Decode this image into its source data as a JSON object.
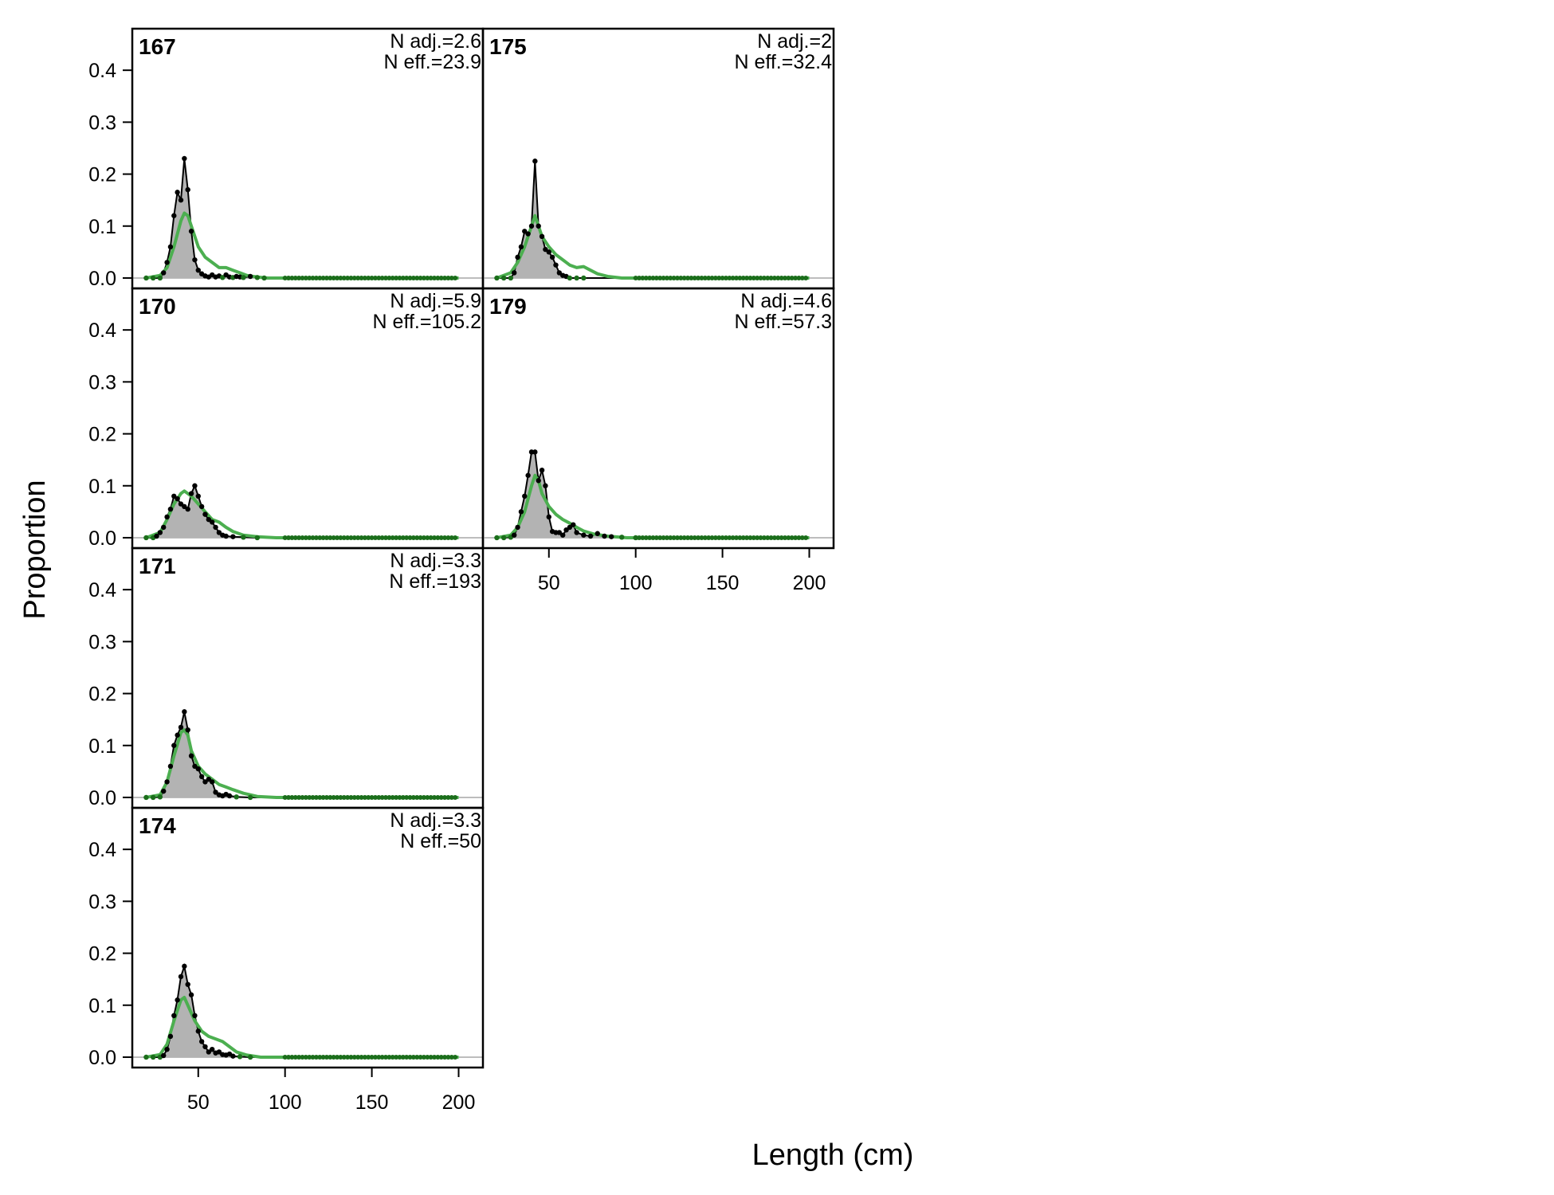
{
  "figure": {
    "xlabel": "Length (cm)",
    "ylabel": "Proportion"
  },
  "style": {
    "observed_fill": "#b3b3b3",
    "observed_line": "#000000",
    "expected_line": "#4caf50",
    "dot_green": "#1b6e1b",
    "zero_line": "#bdbdbd",
    "frame": "#000000"
  },
  "chart_data": [
    {
      "type": "area",
      "panel": "167",
      "n_adj_text": "N adj.=2.6",
      "n_eff_text": "N eff.=23.9",
      "xlim": [
        12,
        214
      ],
      "ylim": [
        -0.02,
        0.48
      ],
      "xticks": [
        "50",
        "100",
        "150",
        "200"
      ],
      "yticks": [
        "0.0",
        "0.1",
        "0.2",
        "0.3",
        "0.4"
      ],
      "observed": [
        [
          20,
          0
        ],
        [
          24,
          0
        ],
        [
          28,
          0
        ],
        [
          30,
          0.01
        ],
        [
          32,
          0.03
        ],
        [
          34,
          0.06
        ],
        [
          36,
          0.12
        ],
        [
          38,
          0.165
        ],
        [
          40,
          0.15
        ],
        [
          42,
          0.23
        ],
        [
          44,
          0.17
        ],
        [
          46,
          0.09
        ],
        [
          48,
          0.035
        ],
        [
          50,
          0.015
        ],
        [
          52,
          0.008
        ],
        [
          54,
          0.004
        ],
        [
          56,
          0.002
        ],
        [
          58,
          0.006
        ],
        [
          60,
          0.002
        ],
        [
          62,
          0.004
        ],
        [
          64,
          0.001
        ],
        [
          66,
          0.006
        ],
        [
          68,
          0.002
        ],
        [
          70,
          0.001
        ],
        [
          72,
          0.003
        ],
        [
          74,
          0.002
        ],
        [
          76,
          0.001
        ],
        [
          80,
          0.003
        ],
        [
          84,
          0.001
        ],
        [
          88,
          0
        ],
        [
          200,
          0
        ]
      ],
      "expected": [
        [
          20,
          0
        ],
        [
          28,
          0.005
        ],
        [
          32,
          0.02
        ],
        [
          36,
          0.06
        ],
        [
          40,
          0.11
        ],
        [
          42,
          0.125
        ],
        [
          44,
          0.12
        ],
        [
          46,
          0.1
        ],
        [
          50,
          0.06
        ],
        [
          54,
          0.04
        ],
        [
          58,
          0.03
        ],
        [
          62,
          0.02
        ],
        [
          66,
          0.02
        ],
        [
          70,
          0.015
        ],
        [
          74,
          0.01
        ],
        [
          78,
          0.005
        ],
        [
          84,
          0.002
        ],
        [
          90,
          0
        ],
        [
          200,
          0
        ]
      ]
    },
    {
      "type": "area",
      "panel": "170",
      "n_adj_text": "N adj.=5.9",
      "n_eff_text": "N eff.=105.2",
      "xlim": [
        12,
        214
      ],
      "ylim": [
        -0.02,
        0.48
      ],
      "xticks": [
        "50",
        "100",
        "150",
        "200"
      ],
      "yticks": [
        "0.0",
        "0.1",
        "0.2",
        "0.3",
        "0.4"
      ],
      "observed": [
        [
          20,
          0
        ],
        [
          24,
          0
        ],
        [
          26,
          0.003
        ],
        [
          28,
          0.01
        ],
        [
          30,
          0.02
        ],
        [
          32,
          0.04
        ],
        [
          34,
          0.055
        ],
        [
          36,
          0.08
        ],
        [
          38,
          0.075
        ],
        [
          40,
          0.065
        ],
        [
          42,
          0.06
        ],
        [
          44,
          0.055
        ],
        [
          46,
          0.085
        ],
        [
          48,
          0.1
        ],
        [
          50,
          0.08
        ],
        [
          52,
          0.06
        ],
        [
          54,
          0.045
        ],
        [
          56,
          0.035
        ],
        [
          58,
          0.03
        ],
        [
          60,
          0.02
        ],
        [
          62,
          0.01
        ],
        [
          64,
          0.005
        ],
        [
          66,
          0.003
        ],
        [
          70,
          0.002
        ],
        [
          76,
          0.001
        ],
        [
          84,
          0
        ],
        [
          200,
          0
        ]
      ],
      "expected": [
        [
          20,
          0
        ],
        [
          28,
          0.01
        ],
        [
          32,
          0.035
        ],
        [
          36,
          0.065
        ],
        [
          40,
          0.085
        ],
        [
          42,
          0.09
        ],
        [
          46,
          0.08
        ],
        [
          50,
          0.065
        ],
        [
          54,
          0.05
        ],
        [
          58,
          0.035
        ],
        [
          62,
          0.03
        ],
        [
          66,
          0.02
        ],
        [
          70,
          0.012
        ],
        [
          76,
          0.005
        ],
        [
          84,
          0.002
        ],
        [
          95,
          0
        ],
        [
          200,
          0
        ]
      ]
    },
    {
      "type": "area",
      "panel": "171",
      "n_adj_text": "N adj.=3.3",
      "n_eff_text": "N eff.=193",
      "xlim": [
        12,
        214
      ],
      "ylim": [
        -0.02,
        0.48
      ],
      "xticks": [
        "50",
        "100",
        "150",
        "200"
      ],
      "yticks": [
        "0.0",
        "0.1",
        "0.2",
        "0.3",
        "0.4"
      ],
      "observed": [
        [
          20,
          0
        ],
        [
          24,
          0
        ],
        [
          28,
          0.001
        ],
        [
          30,
          0.012
        ],
        [
          32,
          0.03
        ],
        [
          34,
          0.06
        ],
        [
          36,
          0.1
        ],
        [
          38,
          0.12
        ],
        [
          40,
          0.135
        ],
        [
          42,
          0.165
        ],
        [
          44,
          0.13
        ],
        [
          46,
          0.08
        ],
        [
          48,
          0.06
        ],
        [
          50,
          0.055
        ],
        [
          52,
          0.04
        ],
        [
          54,
          0.03
        ],
        [
          56,
          0.035
        ],
        [
          58,
          0.03
        ],
        [
          60,
          0.01
        ],
        [
          62,
          0.005
        ],
        [
          64,
          0.003
        ],
        [
          66,
          0.006
        ],
        [
          68,
          0.003
        ],
        [
          72,
          0.001
        ],
        [
          80,
          0
        ],
        [
          200,
          0
        ]
      ],
      "expected": [
        [
          20,
          0
        ],
        [
          28,
          0.005
        ],
        [
          32,
          0.03
        ],
        [
          36,
          0.08
        ],
        [
          40,
          0.125
        ],
        [
          42,
          0.13
        ],
        [
          44,
          0.12
        ],
        [
          46,
          0.09
        ],
        [
          50,
          0.06
        ],
        [
          54,
          0.045
        ],
        [
          58,
          0.035
        ],
        [
          62,
          0.025
        ],
        [
          66,
          0.02
        ],
        [
          70,
          0.015
        ],
        [
          76,
          0.008
        ],
        [
          84,
          0.002
        ],
        [
          95,
          0
        ],
        [
          200,
          0
        ]
      ]
    },
    {
      "type": "area",
      "panel": "174",
      "n_adj_text": "N adj.=3.3",
      "n_eff_text": "N eff.=50",
      "xlim": [
        12,
        214
      ],
      "ylim": [
        -0.02,
        0.48
      ],
      "xticks": [
        "50",
        "100",
        "150",
        "200"
      ],
      "yticks": [
        "0.0",
        "0.1",
        "0.2",
        "0.3",
        "0.4"
      ],
      "observed": [
        [
          20,
          0
        ],
        [
          24,
          0
        ],
        [
          28,
          0
        ],
        [
          30,
          0.003
        ],
        [
          32,
          0.015
        ],
        [
          34,
          0.04
        ],
        [
          36,
          0.08
        ],
        [
          38,
          0.11
        ],
        [
          40,
          0.155
        ],
        [
          42,
          0.175
        ],
        [
          44,
          0.14
        ],
        [
          46,
          0.12
        ],
        [
          48,
          0.08
        ],
        [
          50,
          0.05
        ],
        [
          52,
          0.03
        ],
        [
          54,
          0.02
        ],
        [
          56,
          0.01
        ],
        [
          58,
          0.015
        ],
        [
          60,
          0.008
        ],
        [
          62,
          0.01
        ],
        [
          64,
          0.005
        ],
        [
          66,
          0.004
        ],
        [
          68,
          0.006
        ],
        [
          70,
          0.002
        ],
        [
          74,
          0.001
        ],
        [
          80,
          0
        ],
        [
          200,
          0
        ]
      ],
      "expected": [
        [
          20,
          0
        ],
        [
          28,
          0.005
        ],
        [
          32,
          0.025
        ],
        [
          36,
          0.07
        ],
        [
          40,
          0.11
        ],
        [
          42,
          0.115
        ],
        [
          44,
          0.1
        ],
        [
          48,
          0.07
        ],
        [
          52,
          0.05
        ],
        [
          56,
          0.04
        ],
        [
          60,
          0.035
        ],
        [
          64,
          0.03
        ],
        [
          68,
          0.02
        ],
        [
          72,
          0.01
        ],
        [
          78,
          0.004
        ],
        [
          86,
          0
        ],
        [
          200,
          0
        ]
      ]
    },
    {
      "type": "area",
      "panel": "175",
      "n_adj_text": "N adj.=2",
      "n_eff_text": "N eff.=32.4",
      "xlim": [
        12,
        214
      ],
      "ylim": [
        -0.02,
        0.48
      ],
      "xticks": [
        "50",
        "100",
        "150",
        "200"
      ],
      "yticks": [
        "0.0",
        "0.1",
        "0.2",
        "0.3",
        "0.4"
      ],
      "observed": [
        [
          20,
          0
        ],
        [
          24,
          0
        ],
        [
          28,
          0
        ],
        [
          30,
          0.01
        ],
        [
          32,
          0.04
        ],
        [
          34,
          0.06
        ],
        [
          36,
          0.09
        ],
        [
          38,
          0.085
        ],
        [
          40,
          0.1
        ],
        [
          42,
          0.225
        ],
        [
          44,
          0.1
        ],
        [
          46,
          0.08
        ],
        [
          48,
          0.055
        ],
        [
          50,
          0.05
        ],
        [
          52,
          0.04
        ],
        [
          54,
          0.025
        ],
        [
          56,
          0.01
        ],
        [
          58,
          0.005
        ],
        [
          60,
          0.003
        ],
        [
          62,
          0
        ],
        [
          66,
          0
        ],
        [
          70,
          0
        ],
        [
          200,
          0
        ]
      ],
      "expected": [
        [
          20,
          0
        ],
        [
          28,
          0.01
        ],
        [
          32,
          0.03
        ],
        [
          36,
          0.06
        ],
        [
          40,
          0.1
        ],
        [
          42,
          0.12
        ],
        [
          44,
          0.1
        ],
        [
          46,
          0.08
        ],
        [
          50,
          0.06
        ],
        [
          54,
          0.045
        ],
        [
          58,
          0.035
        ],
        [
          62,
          0.025
        ],
        [
          66,
          0.02
        ],
        [
          70,
          0.022
        ],
        [
          74,
          0.015
        ],
        [
          78,
          0.008
        ],
        [
          84,
          0.003
        ],
        [
          92,
          0
        ],
        [
          200,
          0
        ]
      ]
    },
    {
      "type": "area",
      "panel": "179",
      "n_adj_text": "N adj.=4.6",
      "n_eff_text": "N eff.=57.3",
      "xlim": [
        12,
        214
      ],
      "ylim": [
        -0.02,
        0.48
      ],
      "xticks": [
        "50",
        "100",
        "150",
        "200"
      ],
      "yticks": [
        "0.0",
        "0.1",
        "0.2",
        "0.3",
        "0.4"
      ],
      "observed": [
        [
          20,
          0
        ],
        [
          24,
          0
        ],
        [
          28,
          0.001
        ],
        [
          30,
          0.005
        ],
        [
          32,
          0.02
        ],
        [
          34,
          0.05
        ],
        [
          36,
          0.08
        ],
        [
          38,
          0.12
        ],
        [
          40,
          0.165
        ],
        [
          42,
          0.165
        ],
        [
          44,
          0.11
        ],
        [
          46,
          0.13
        ],
        [
          48,
          0.1
        ],
        [
          50,
          0.04
        ],
        [
          52,
          0.012
        ],
        [
          54,
          0.01
        ],
        [
          56,
          0.01
        ],
        [
          58,
          0.005
        ],
        [
          60,
          0.015
        ],
        [
          62,
          0.02
        ],
        [
          64,
          0.025
        ],
        [
          66,
          0.01
        ],
        [
          70,
          0.005
        ],
        [
          74,
          0.003
        ],
        [
          78,
          0.008
        ],
        [
          82,
          0.003
        ],
        [
          86,
          0.002
        ],
        [
          92,
          0.001
        ],
        [
          100,
          0
        ],
        [
          200,
          0
        ]
      ],
      "expected": [
        [
          20,
          0
        ],
        [
          28,
          0.005
        ],
        [
          32,
          0.02
        ],
        [
          36,
          0.05
        ],
        [
          40,
          0.1
        ],
        [
          42,
          0.12
        ],
        [
          44,
          0.11
        ],
        [
          46,
          0.085
        ],
        [
          50,
          0.06
        ],
        [
          54,
          0.045
        ],
        [
          58,
          0.035
        ],
        [
          62,
          0.028
        ],
        [
          66,
          0.02
        ],
        [
          70,
          0.013
        ],
        [
          76,
          0.007
        ],
        [
          84,
          0.003
        ],
        [
          95,
          0
        ],
        [
          200,
          0
        ]
      ]
    }
  ]
}
